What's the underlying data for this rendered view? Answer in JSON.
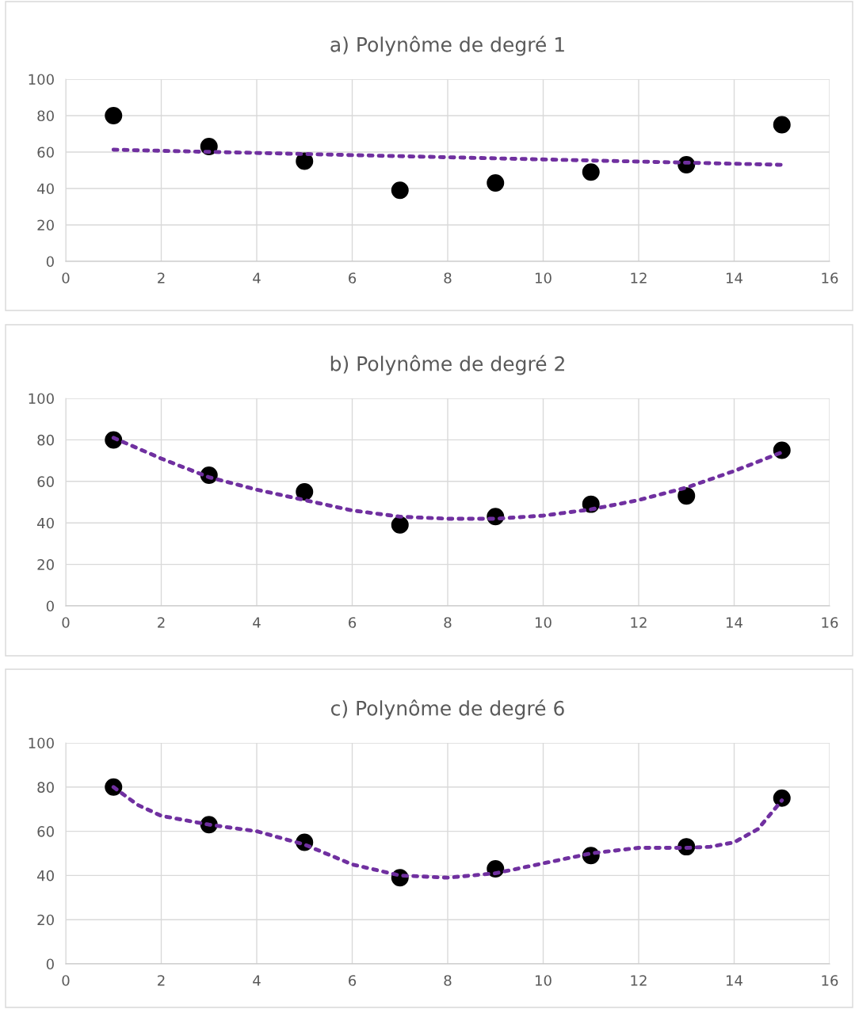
{
  "chart_data": [
    {
      "type": "scatter",
      "title": "a) Polynôme de degré 1",
      "xlim": [
        0,
        16
      ],
      "xticks": [
        0,
        2,
        4,
        6,
        8,
        10,
        12,
        14,
        16
      ],
      "ylim": [
        0,
        100
      ],
      "yticks": [
        0,
        20,
        40,
        60,
        80,
        100
      ],
      "grid": true,
      "series": [
        {
          "marker": "circle",
          "color": "#000000",
          "x": [
            1,
            3,
            5,
            7,
            9,
            11,
            13,
            15
          ],
          "values": [
            80,
            63,
            55,
            39,
            43,
            49,
            53,
            75
          ]
        },
        {
          "type": "line",
          "marker": "none",
          "line_style": "dotted",
          "color": "#7030a0",
          "x": [
            1,
            15
          ],
          "values": [
            61.3,
            53.0
          ]
        }
      ]
    },
    {
      "type": "scatter",
      "title": "b) Polynôme de degré 2",
      "xlim": [
        0,
        16
      ],
      "xticks": [
        0,
        2,
        4,
        6,
        8,
        10,
        12,
        14,
        16
      ],
      "ylim": [
        0,
        100
      ],
      "yticks": [
        0,
        20,
        40,
        60,
        80,
        100
      ],
      "grid": true,
      "series": [
        {
          "marker": "circle",
          "color": "#000000",
          "x": [
            1,
            3,
            5,
            7,
            9,
            11,
            13,
            15
          ],
          "values": [
            80,
            63,
            55,
            39,
            43,
            49,
            53,
            75
          ]
        },
        {
          "type": "line",
          "marker": "none",
          "line_style": "dotted",
          "color": "#7030a0",
          "x": [
            1,
            2,
            3,
            4,
            5,
            6,
            7,
            8,
            9,
            10,
            11,
            12,
            13,
            14,
            15
          ],
          "values": [
            81,
            71,
            62,
            56,
            51,
            46,
            43,
            42,
            42,
            43.5,
            46.5,
            51,
            57,
            65,
            74
          ]
        }
      ]
    },
    {
      "type": "scatter",
      "title": "c) Polynôme de degré 6",
      "xlim": [
        0,
        16
      ],
      "xticks": [
        0,
        2,
        4,
        6,
        8,
        10,
        12,
        14,
        16
      ],
      "ylim": [
        0,
        100
      ],
      "yticks": [
        0,
        20,
        40,
        60,
        80,
        100
      ],
      "grid": true,
      "series": [
        {
          "marker": "circle",
          "color": "#000000",
          "x": [
            1,
            3,
            5,
            7,
            9,
            11,
            13,
            15
          ],
          "values": [
            80,
            63,
            55,
            39,
            43,
            49,
            53,
            75
          ]
        },
        {
          "type": "line",
          "marker": "none",
          "line_style": "dotted",
          "color": "#7030a0",
          "x": [
            1,
            1.5,
            2,
            3,
            4,
            5,
            6,
            7,
            8,
            9,
            10,
            11,
            12,
            13,
            13.5,
            14,
            14.5,
            15
          ],
          "values": [
            80,
            72,
            67,
            63,
            60,
            54,
            45,
            40,
            39,
            41,
            45.5,
            50,
            52.5,
            52.5,
            53,
            55,
            61,
            74
          ]
        }
      ]
    }
  ]
}
